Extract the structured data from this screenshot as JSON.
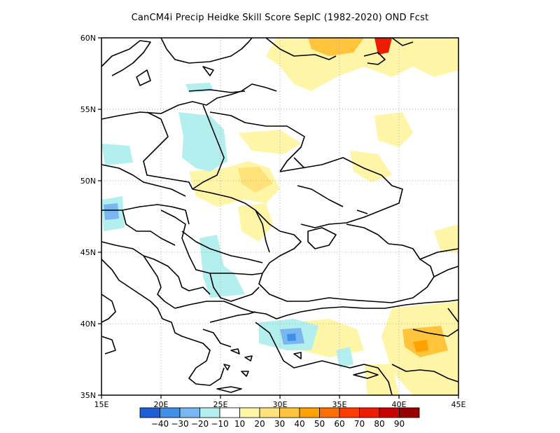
{
  "title": "CanCM4i Precip Heidke Skill Score SepIC (1982-2020) OND Fcst",
  "map": {
    "lon_range": [
      15,
      45
    ],
    "lat_range": [
      35,
      60
    ],
    "lon_ticks": [
      "15E",
      "20E",
      "25E",
      "30E",
      "35E",
      "40E",
      "45E"
    ],
    "lat_ticks": [
      "60N",
      "55N",
      "50N",
      "45N",
      "40N",
      "35N"
    ],
    "grid": true
  },
  "colorbar": {
    "colors": [
      "#1f5fd6",
      "#3d8fe8",
      "#78b7f2",
      "#b4eff0",
      "#ffffff",
      "#fff5a6",
      "#ffe27a",
      "#ffc43c",
      "#ffa100",
      "#ff6f00",
      "#ff3b00",
      "#ee1c00",
      "#c80000",
      "#9a0000"
    ],
    "labels": [
      "-40",
      "-30",
      "-20",
      "-10",
      "10",
      "20",
      "30",
      "40",
      "50",
      "60",
      "70",
      "80",
      "90"
    ]
  }
}
